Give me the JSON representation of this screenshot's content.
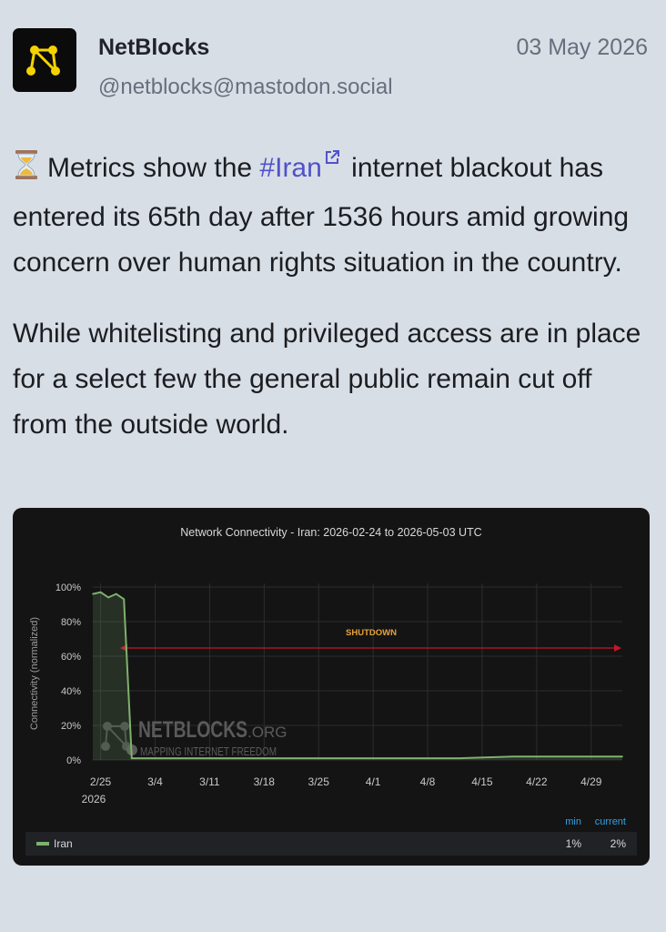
{
  "post": {
    "author_name": "NetBlocks",
    "author_handle": "@netblocks@mastodon.social",
    "date": "03 May 2026",
    "avatar_icon": "netblocks-logo-icon",
    "accent_color": "#4f52c9",
    "paragraph1": {
      "emoji_icon": "hourglass-icon",
      "lead": "Metrics show the ",
      "hashtag": "#Iran",
      "rest": " internet blackout has entered its 65th day after 1536 hours amid growing concern over human rights situation in the country."
    },
    "paragraph2": "While whitelisting and privileged access are in place for a select few the general public remain cut off from the outside world."
  },
  "chart_data": {
    "type": "line",
    "title": "Network Connectivity - Iran: 2026-02-24 to 2026-05-03 UTC",
    "ylabel": "Connectivity (normalized)",
    "xlabel": "",
    "ylim": [
      0,
      100
    ],
    "y_ticks": [
      "100%",
      "80%",
      "60%",
      "40%",
      "20%",
      "0%"
    ],
    "x_ticks": [
      "2/25",
      "3/4",
      "3/11",
      "3/18",
      "3/25",
      "4/1",
      "4/8",
      "4/15",
      "4/22",
      "4/29"
    ],
    "x_year_label": "2026",
    "watermark": [
      "NETBLOCKS",
      ".ORG",
      "MAPPING INTERNET FREEDOM"
    ],
    "annotation": "SHUTDOWN",
    "grid": true,
    "series": [
      {
        "name": "Iran",
        "color": "#7eb26d",
        "x": [
          "2026-02-24",
          "2026-02-25",
          "2026-02-26",
          "2026-02-27",
          "2026-02-28",
          "2026-03-01",
          "2026-03-08",
          "2026-03-15",
          "2026-03-22",
          "2026-03-29",
          "2026-04-05",
          "2026-04-12",
          "2026-04-19",
          "2026-04-26",
          "2026-05-03"
        ],
        "values": [
          96,
          97,
          94,
          96,
          93,
          1,
          1,
          1,
          1,
          1,
          1,
          1,
          2,
          2,
          2
        ]
      }
    ],
    "legend": {
      "headers": [
        "min",
        "current"
      ],
      "rows": [
        {
          "name": "Iran",
          "min": "1%",
          "current": "2%"
        }
      ]
    }
  }
}
